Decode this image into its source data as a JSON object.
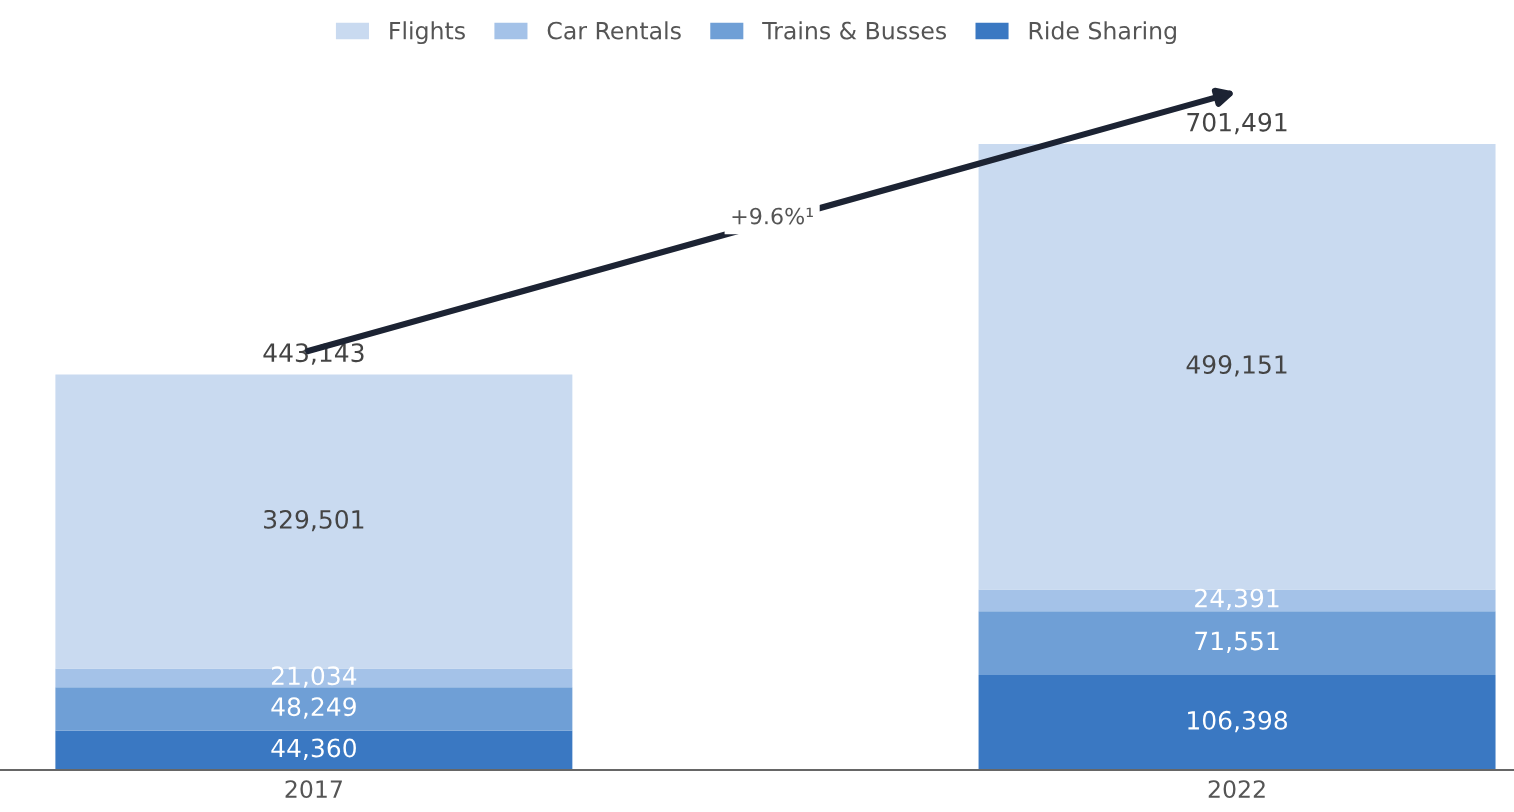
{
  "chart_data": {
    "type": "bar",
    "stacked": true,
    "categories": [
      "2017",
      "2022"
    ],
    "series": [
      {
        "name": "Ride Sharing",
        "color": "#3a78c2",
        "values": [
          44360,
          106398
        ],
        "value_labels": [
          "44,360",
          "106,398"
        ]
      },
      {
        "name": "Trains & Busses",
        "color": "#6f9fd6",
        "values": [
          48249,
          71551
        ],
        "value_labels": [
          "48,249",
          "71,551"
        ]
      },
      {
        "name": "Car Rentals",
        "color": "#a4c2e8",
        "values": [
          21034,
          24391
        ],
        "value_labels": [
          "21,034",
          "24,391"
        ]
      },
      {
        "name": "Flights",
        "color": "#c9daf0",
        "values": [
          329501,
          499151
        ],
        "value_labels": [
          "329,501",
          "499,151"
        ]
      }
    ],
    "totals": [
      "443,143",
      "701,491"
    ],
    "annotations": [
      "+9.6%¹"
    ],
    "legend": "top",
    "grid": false,
    "tick_labels": "x"
  }
}
